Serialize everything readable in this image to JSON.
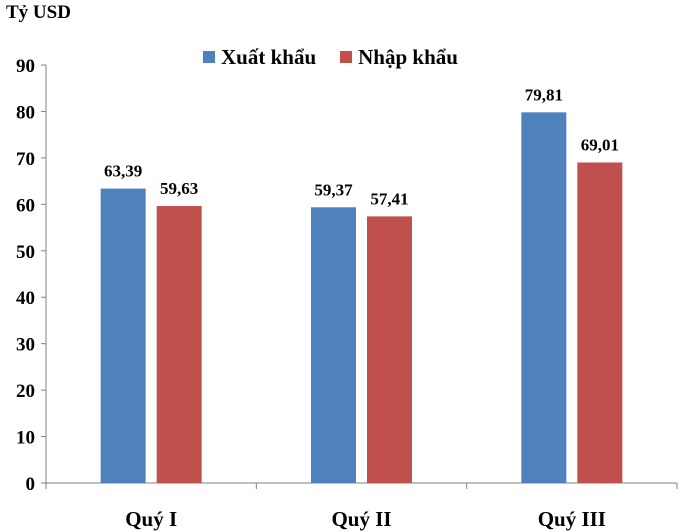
{
  "chart_data": {
    "type": "bar",
    "title": "",
    "xlabel": "",
    "ylabel": "Tỷ USD",
    "categories": [
      "Quý I",
      "Quý II",
      "Quý III"
    ],
    "series": [
      {
        "name": "Xuất khẩu",
        "values": [
          63.39,
          59.37,
          79.81
        ],
        "labels": [
          "63,39",
          "59,37",
          "79,81"
        ],
        "color": "#4F81BD"
      },
      {
        "name": "Nhập khẩu",
        "values": [
          59.63,
          57.41,
          69.01
        ],
        "labels": [
          "59,63",
          "57,41",
          "69,01"
        ],
        "color": "#C0504D"
      }
    ],
    "ylim": [
      0,
      90
    ],
    "yticks": [
      0,
      10,
      20,
      30,
      40,
      50,
      60,
      70,
      80,
      90
    ],
    "grid": false,
    "legend_position": "top-center"
  }
}
